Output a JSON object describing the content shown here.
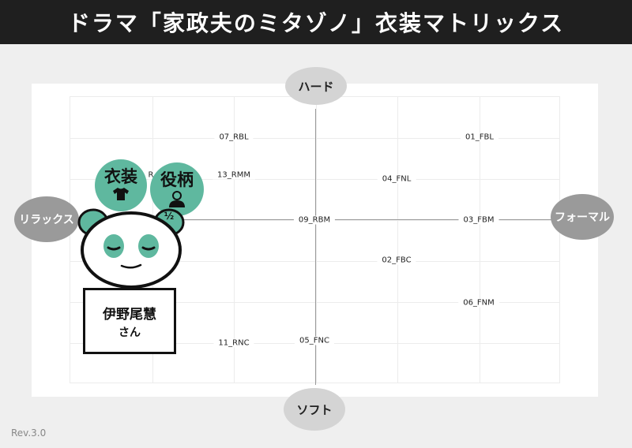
{
  "header": {
    "title": "ドラマ「家政夫のミタゾノ」衣装マトリックス"
  },
  "axes": {
    "top": "ハード",
    "bottom": "ソフト",
    "left": "リラックス",
    "right": "フォーマル"
  },
  "items": [
    {
      "label": "07_RBL"
    },
    {
      "label": "01_FBL"
    },
    {
      "label": "13_RMM"
    },
    {
      "label": "04_FNL"
    },
    {
      "label": "09_RBM"
    },
    {
      "label": "03_FBM"
    },
    {
      "label": "02_FBC"
    },
    {
      "label": "06_FNM"
    },
    {
      "label": "11_RNC"
    },
    {
      "label": "05_FNC"
    },
    {
      "label": "R"
    }
  ],
  "legend": {
    "costume": "衣装",
    "role": "役柄",
    "half": "½"
  },
  "person": {
    "name": "伊野尾慧",
    "suffix": "さん"
  },
  "footer": {
    "revision": "Rev.3.0"
  },
  "colors": {
    "header_bg": "#1f1f1f",
    "accent": "#5fb89f",
    "axis": "#9a9a9a"
  }
}
